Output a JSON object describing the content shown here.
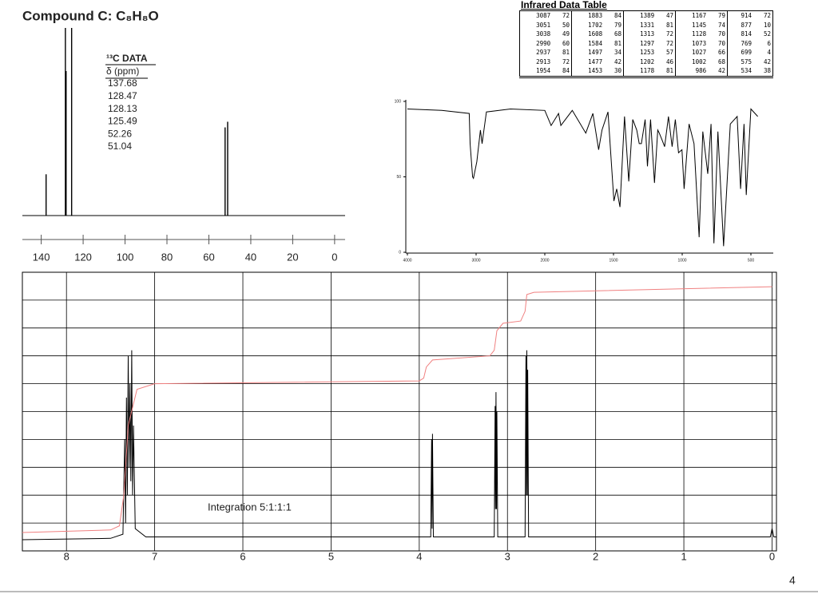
{
  "title": "Compound C: C₈H₈O",
  "c13_table": {
    "heading": "¹³C DATA",
    "unit": "δ (ppm)",
    "shifts": [
      "137.68",
      "128.47",
      "128.13",
      "125.49",
      "52.26",
      "51.04"
    ]
  },
  "ir_table": {
    "title": "Infrared Data Table",
    "rows": [
      [
        3087,
        72,
        1883,
        84,
        1389,
        47,
        1167,
        79,
        914,
        72
      ],
      [
        3051,
        50,
        1702,
        79,
        1331,
        81,
        1145,
        74,
        877,
        10
      ],
      [
        3038,
        49,
        1608,
        68,
        1313,
        72,
        1128,
        70,
        814,
        52
      ],
      [
        2990,
        60,
        1584,
        81,
        1297,
        72,
        1073,
        70,
        769,
        6
      ],
      [
        2937,
        81,
        1497,
        34,
        1253,
        57,
        1027,
        66,
        699,
        4
      ],
      [
        2913,
        72,
        1477,
        42,
        1202,
        46,
        1002,
        68,
        575,
        42
      ],
      [
        1954,
        84,
        1453,
        30,
        1178,
        81,
        986,
        42,
        534,
        38
      ]
    ]
  },
  "integration": "Integration 5:1:1:1",
  "page_number": "4",
  "chart_data": [
    {
      "type": "stick",
      "x": [
        137.68,
        128.47,
        128.13,
        125.49,
        52.26,
        51.04
      ],
      "values": [
        22,
        100,
        77,
        100,
        47,
        50
      ],
      "color": "#000000",
      "xlim": [
        149,
        -5
      ],
      "xticks": [
        140,
        120,
        100,
        80,
        60,
        40,
        20,
        0
      ],
      "ylim": [
        0,
        100
      ]
    },
    {
      "type": "line",
      "color": "#000000",
      "xlim": [
        4000,
        450
      ],
      "xticks": [
        4000,
        3000,
        2000,
        1500,
        1000,
        500
      ],
      "ylim": [
        0,
        100
      ],
      "yticks": [
        0,
        50,
        100
      ],
      "x": [
        4000,
        3500,
        3100,
        3087,
        3051,
        3038,
        2990,
        2937,
        2913,
        2850,
        2500,
        2000,
        1954,
        1900,
        1883,
        1800,
        1702,
        1650,
        1608,
        1584,
        1540,
        1497,
        1477,
        1453,
        1420,
        1389,
        1360,
        1331,
        1313,
        1297,
        1270,
        1253,
        1230,
        1202,
        1178,
        1167,
        1145,
        1128,
        1100,
        1073,
        1050,
        1027,
        1002,
        986,
        950,
        914,
        877,
        850,
        814,
        790,
        769,
        740,
        699,
        650,
        600,
        575,
        550,
        534,
        500,
        450
      ],
      "values": [
        95,
        94,
        92,
        72,
        50,
        49,
        60,
        81,
        72,
        93,
        95,
        94,
        84,
        92,
        84,
        94,
        79,
        92,
        68,
        81,
        93,
        34,
        42,
        30,
        90,
        47,
        88,
        81,
        72,
        72,
        88,
        57,
        88,
        46,
        81,
        79,
        74,
        70,
        90,
        70,
        88,
        66,
        68,
        42,
        85,
        72,
        10,
        80,
        52,
        85,
        6,
        80,
        4,
        85,
        90,
        42,
        85,
        38,
        95,
        90
      ]
    },
    {
      "type": "line",
      "xlim": [
        8.5,
        -0.05
      ],
      "xticks": [
        8,
        7,
        6,
        5,
        4,
        3,
        2,
        1,
        0
      ],
      "ylim": [
        0,
        100
      ],
      "grid": true,
      "series": [
        {
          "color": "#000000",
          "x": [
            8.5,
            7.5,
            7.36,
            7.34,
            7.33,
            7.32,
            7.31,
            7.3,
            7.29,
            7.28,
            7.27,
            7.26,
            7.25,
            7.24,
            7.22,
            7.1,
            4.0,
            3.87,
            3.86,
            3.855,
            3.85,
            3.84,
            3.2,
            3.15,
            3.14,
            3.135,
            3.13,
            3.125,
            3.12,
            3.11,
            2.9,
            2.8,
            2.79,
            2.785,
            2.78,
            2.775,
            2.77,
            2.76,
            0.02,
            0,
            -0.02,
            -0.05
          ],
          "values": [
            4,
            4.5,
            6,
            40,
            10,
            55,
            20,
            70,
            30,
            60,
            25,
            72,
            20,
            45,
            8,
            5,
            5,
            5,
            40,
            8,
            42,
            5,
            5,
            5,
            52,
            15,
            57,
            15,
            50,
            5,
            5,
            5,
            70,
            20,
            72,
            20,
            65,
            5,
            5,
            8,
            5,
            5
          ]
        },
        {
          "color": "#f08080",
          "x": [
            8.5,
            7.5,
            7.4,
            7.35,
            7.3,
            7.2,
            7.0,
            4.0,
            3.95,
            3.92,
            3.85,
            3.2,
            3.15,
            3.12,
            3.05,
            2.85,
            2.8,
            2.78,
            2.7,
            0
          ],
          "values": [
            6.6,
            7.5,
            9,
            20,
            45,
            58,
            60,
            61,
            62,
            66,
            68.5,
            70,
            72,
            79,
            81.7,
            82.5,
            86,
            92,
            92.8,
            94.8
          ]
        }
      ]
    }
  ]
}
